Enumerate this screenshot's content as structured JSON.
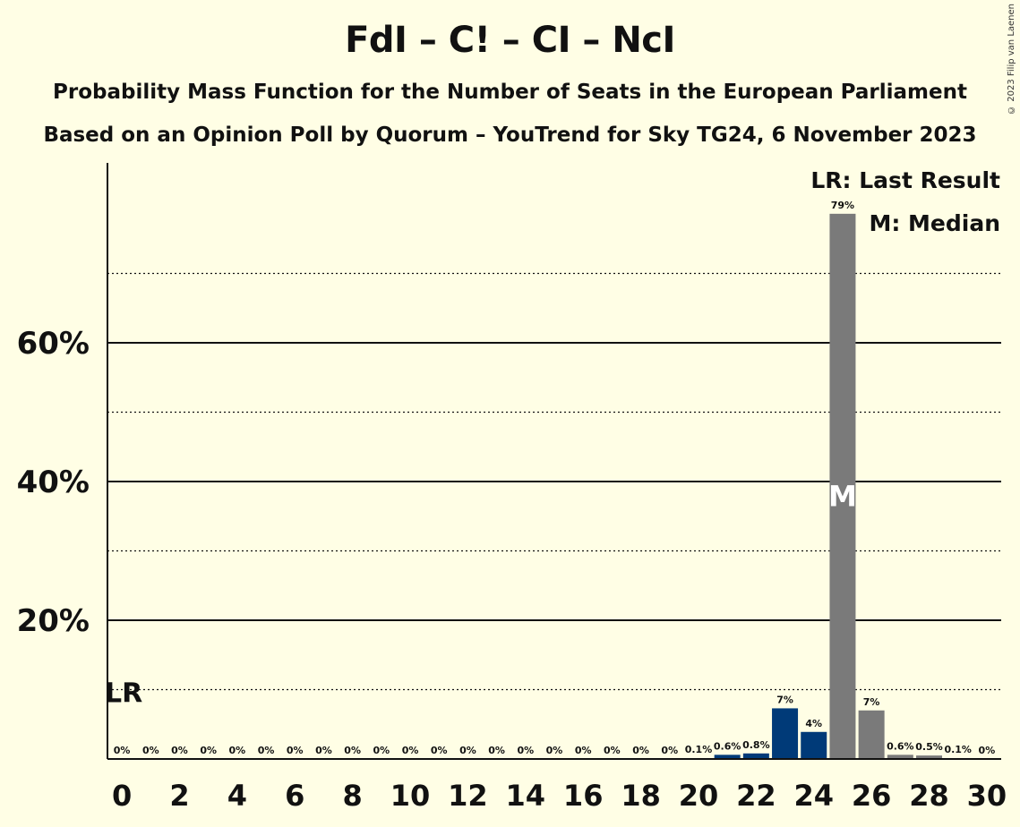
{
  "title": "FdI – C! – CI – NcI",
  "subtitle_1": "Probability Mass Function for the Number of Seats in the European Parliament",
  "subtitle_2": "Based on an Opinion Poll by Quorum – YouTrend for Sky TG24, 6 November 2023",
  "copyright": "© 2023 Filip van Laenen",
  "legend": {
    "last_result": "LR: Last Result",
    "median": "M: Median",
    "lr_marker": "LR",
    "median_marker": "M"
  },
  "colors": {
    "background": "#FFFEE5",
    "party": "#003A78",
    "median": "#7A7A7A"
  },
  "chart_data": {
    "type": "bar",
    "x": [
      0,
      1,
      2,
      3,
      4,
      5,
      6,
      7,
      8,
      9,
      10,
      11,
      12,
      13,
      14,
      15,
      16,
      17,
      18,
      19,
      20,
      21,
      22,
      23,
      24,
      25,
      26,
      27,
      28,
      29,
      30
    ],
    "values": [
      0,
      0,
      0,
      0,
      0,
      0,
      0,
      0,
      0,
      0,
      0,
      0,
      0,
      0,
      0,
      0,
      0,
      0,
      0,
      0,
      0.1,
      0.6,
      0.8,
      7.3,
      3.9,
      78.6,
      7.0,
      0.6,
      0.5,
      0.1,
      0
    ],
    "value_labels": [
      "0%",
      "0%",
      "0%",
      "0%",
      "0%",
      "0%",
      "0%",
      "0%",
      "0%",
      "0%",
      "0%",
      "0%",
      "0%",
      "0%",
      "0%",
      "0%",
      "0%",
      "0%",
      "0%",
      "0%",
      "0.1%",
      "0.6%",
      "0.8%",
      "7%",
      "4%",
      "79%",
      "7%",
      "0.6%",
      "0.5%",
      "0.1%",
      "0%"
    ],
    "x_tick_labels": [
      "0",
      "2",
      "4",
      "6",
      "8",
      "10",
      "12",
      "14",
      "16",
      "18",
      "20",
      "22",
      "24",
      "26",
      "28",
      "30"
    ],
    "y_tick_labels": [
      "20%",
      "40%",
      "60%"
    ],
    "y_ticks": [
      20,
      40,
      60
    ],
    "ylim": [
      0,
      85
    ],
    "median_seat": 25,
    "last_result_seat": 0,
    "grid": true,
    "legend_position": "top-right"
  }
}
